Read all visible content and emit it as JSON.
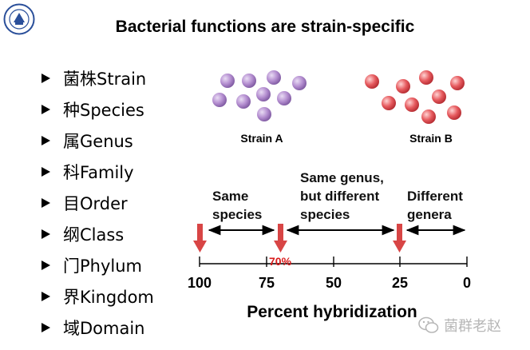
{
  "title": "Bacterial functions are strain-specific",
  "ranks": [
    {
      "label": "菌株Strain"
    },
    {
      "label": "种Species"
    },
    {
      "label": "属Genus"
    },
    {
      "label": "科Family"
    },
    {
      "label": "目Order"
    },
    {
      "label": "纲Class"
    },
    {
      "label": "门Phylum"
    },
    {
      "label": "界Kingdom"
    },
    {
      "label": "域Domain"
    }
  ],
  "strains": {
    "a_label": "Strain A",
    "b_label": "Strain B",
    "a_color": "#b48ed0",
    "b_color": "#e65a5e"
  },
  "scale": {
    "ticks": [
      "100",
      "75",
      "50",
      "25",
      "0"
    ],
    "threshold_label": "70%",
    "threshold_color": "#d91a1a",
    "axis_label": "Percent hybridization",
    "arrow_color": "#d84545"
  },
  "ranges": {
    "same_species_line1": "Same",
    "same_species_line2": "species",
    "same_genus_line1": "Same genus,",
    "same_genus_line2": "but different",
    "same_genus_line3": "species",
    "diff_genera_line1": "Different",
    "diff_genera_line2": "genera"
  },
  "watermark": {
    "text": "菌群老赵"
  }
}
